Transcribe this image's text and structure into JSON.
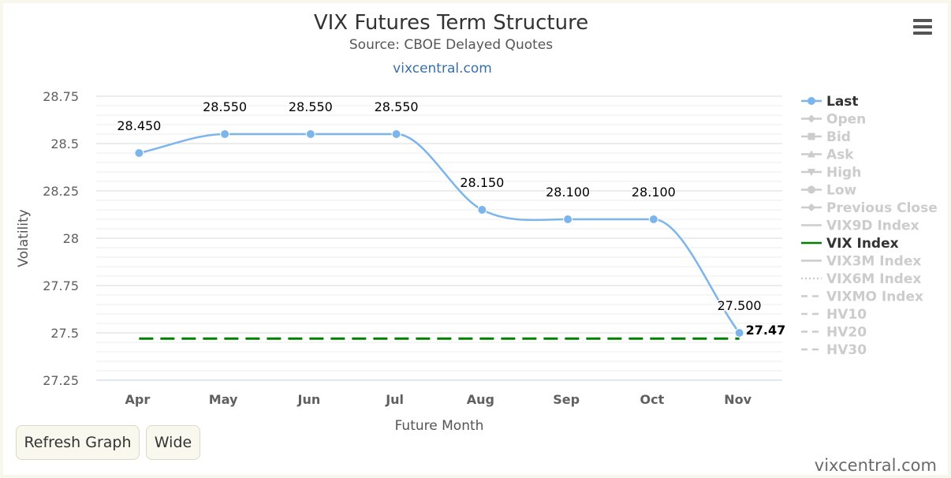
{
  "chart_data": {
    "type": "line",
    "title": "VIX Futures Term Structure",
    "subtitle": "Source: CBOE Delayed Quotes",
    "credit_top": "vixcentral.com",
    "xlabel": "Future Month",
    "ylabel": "Volatility",
    "categories": [
      "Apr",
      "May",
      "Jun",
      "Jul",
      "Aug",
      "Sep",
      "Oct",
      "Nov"
    ],
    "ylim": [
      27.25,
      28.75
    ],
    "yticks": [
      "28.75",
      "28.5",
      "28.25",
      "28",
      "27.75",
      "27.5",
      "27.25"
    ],
    "grid": true,
    "legend_position": "right",
    "series": [
      {
        "name": "Last",
        "values": [
          28.45,
          28.55,
          28.55,
          28.55,
          28.15,
          28.1,
          28.1,
          27.5
        ],
        "labels": [
          "28.450",
          "28.550",
          "28.550",
          "28.550",
          "28.150",
          "28.100",
          "28.100",
          "27.500"
        ],
        "color": "#7cb5ec"
      },
      {
        "name": "VIX Index",
        "value": 27.47,
        "end_label": "27.47",
        "color": "#008000"
      }
    ],
    "legend": [
      {
        "name": "Last",
        "icon": "line-dot",
        "active": true
      },
      {
        "name": "Open",
        "icon": "line-diamond",
        "active": false
      },
      {
        "name": "Bid",
        "icon": "line-square",
        "active": false
      },
      {
        "name": "Ask",
        "icon": "line-triangle",
        "active": false
      },
      {
        "name": "High",
        "icon": "line-triangle-down",
        "active": false
      },
      {
        "name": "Low",
        "icon": "line-dot",
        "active": false
      },
      {
        "name": "Previous Close",
        "icon": "line-diamond",
        "active": false
      },
      {
        "name": "VIX9D Index",
        "icon": "line-solid",
        "active": false
      },
      {
        "name": "VIX Index",
        "icon": "line-solid",
        "active": true
      },
      {
        "name": "VIX3M Index",
        "icon": "line-solid",
        "active": false
      },
      {
        "name": "VIX6M Index",
        "icon": "line-dotted",
        "active": false
      },
      {
        "name": "VIXMO Index",
        "icon": "line-dashed",
        "active": false
      },
      {
        "name": "HV10",
        "icon": "line-dashed",
        "active": false
      },
      {
        "name": "HV20",
        "icon": "line-dashed",
        "active": false
      },
      {
        "name": "HV30",
        "icon": "line-dashed",
        "active": false
      }
    ]
  },
  "buttons": {
    "refresh_label": "Refresh Graph",
    "wide_label": "Wide"
  },
  "footer": {
    "brand": "vixcentral.com"
  },
  "menu": {
    "icon": "hamburger-menu-icon"
  }
}
